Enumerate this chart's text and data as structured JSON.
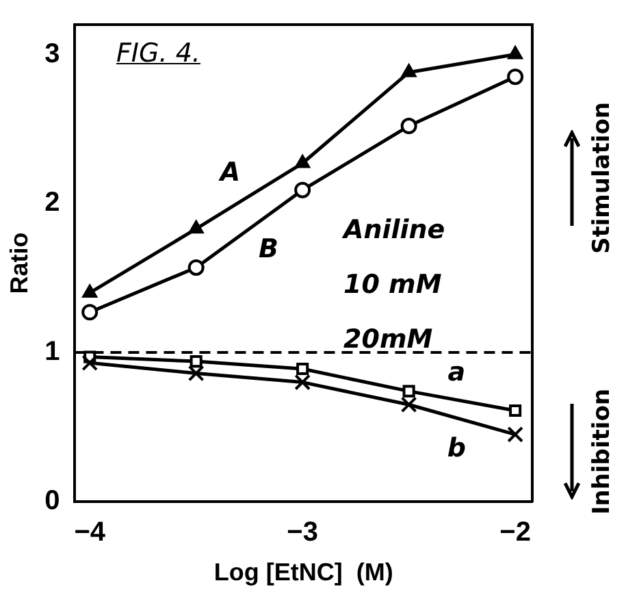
{
  "chart_data": {
    "type": "line",
    "title": "FIG. 4.",
    "xlabel": "Log [EtNC]  (M)",
    "ylabel": "Ratio",
    "x": [
      -4,
      -3.5,
      -3,
      -2.5,
      -2
    ],
    "series": [
      {
        "name": "A",
        "color": "#000000",
        "marker": "triangle",
        "values": [
          1.4,
          1.83,
          2.27,
          2.88,
          3.0
        ]
      },
      {
        "name": "B",
        "color": "#000000",
        "marker": "circle",
        "values": [
          1.27,
          1.57,
          2.09,
          2.52,
          2.85
        ]
      },
      {
        "name": "a",
        "color": "#000000",
        "marker": "square",
        "values": [
          0.97,
          0.94,
          0.89,
          0.74,
          0.61
        ]
      },
      {
        "name": "b",
        "color": "#000000",
        "marker": "cross",
        "values": [
          0.93,
          0.86,
          0.8,
          0.65,
          0.45
        ]
      }
    ],
    "xlim": [
      -4.07,
      -1.92
    ],
    "ylim": [
      0,
      3.2
    ],
    "xticks": [
      -4,
      -3,
      -2
    ],
    "yticks": [
      0,
      1,
      2,
      3
    ],
    "ref_lines": [
      {
        "axis": "y",
        "value": 1,
        "line_style": "dashed",
        "color": "#000000"
      }
    ],
    "annotations": [
      "Aniline",
      "10 mM",
      "20mM",
      "Stimulation",
      "Inhibition"
    ],
    "grid": false,
    "legend": false,
    "line_style": "solid"
  }
}
